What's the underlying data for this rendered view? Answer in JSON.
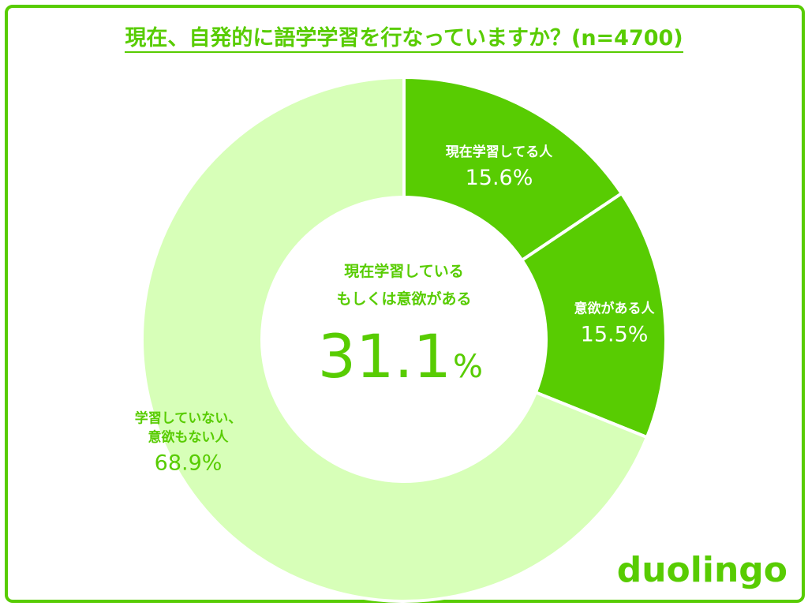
{
  "title": "現在、自発的に語学学習を行なっていますか？(n=4700)",
  "chart_data": {
    "type": "pie",
    "series": [
      {
        "label_lines": [
          "現在学習してる人"
        ],
        "value_text": "15.6%",
        "value": 15.6,
        "color": "#58cc02"
      },
      {
        "label_lines": [
          "意欲がある人"
        ],
        "value_text": "15.5%",
        "value": 15.5,
        "color": "#58cc02"
      },
      {
        "label_lines": [
          "学習していない、",
          "意欲もない人"
        ],
        "value_text": "68.9%",
        "value": 68.9,
        "color": "#d7ffb8"
      }
    ],
    "center": {
      "line1": "現在学習している",
      "line2": "もしくは意欲がある",
      "value": "31.1",
      "unit": "%"
    }
  },
  "logo": "duolingo"
}
